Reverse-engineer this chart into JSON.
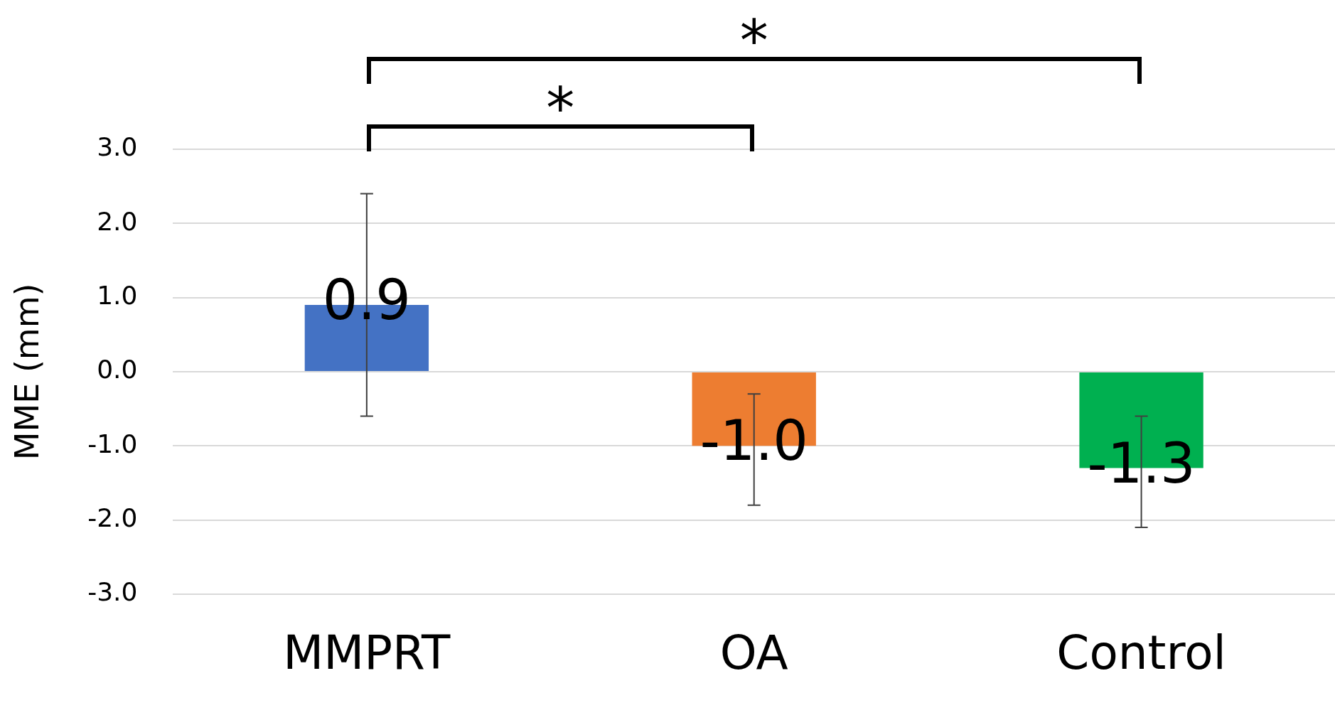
{
  "chart_data": {
    "type": "bar",
    "ylabel": "MME (mm)",
    "categories": [
      "MMPRT",
      "OA",
      "Control"
    ],
    "values": [
      0.9,
      -1.0,
      -1.3
    ],
    "colors": [
      "#4472c4",
      "#ed7d31",
      "#00b050"
    ],
    "errors": [
      1.5,
      [
        -1.8,
        -0.3
      ],
      [
        -2.1,
        -0.6
      ]
    ],
    "value_labels": [
      "0.9",
      "-1.0",
      "-1.3"
    ],
    "ylim": [
      -3,
      3
    ],
    "yticks": [
      {
        "value": -3,
        "label": "-3.0"
      },
      {
        "value": -2,
        "label": "-2.0"
      },
      {
        "value": -1,
        "label": "-1.0"
      },
      {
        "value": 0,
        "label": "0.0"
      },
      {
        "value": 1,
        "label": "1.0"
      },
      {
        "value": 2,
        "label": "2.0"
      },
      {
        "value": 3,
        "label": "3.0"
      }
    ],
    "grid": "y",
    "legend": false,
    "annotations": [
      "*",
      "*"
    ]
  }
}
